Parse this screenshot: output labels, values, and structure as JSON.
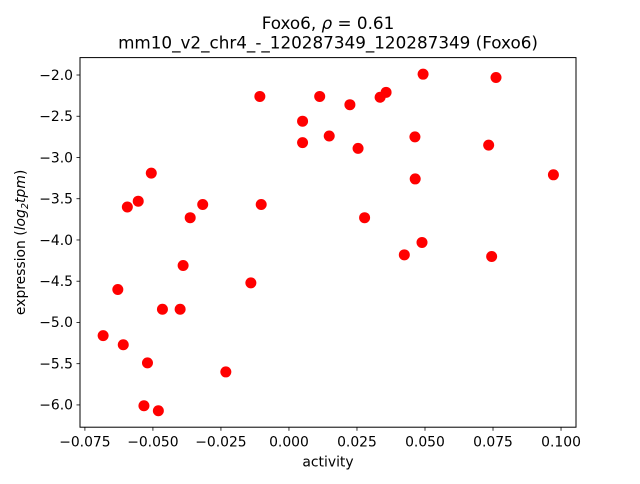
{
  "figure": {
    "title": {
      "prefix": "Foxo6, ",
      "rho": "ρ",
      "rest": " = 0.61"
    },
    "subtitle": "mm10_v2_chr4_-_120287349_120287349 (Foxo6)",
    "xlabel": "activity",
    "ylabel": {
      "prefix": "expression (",
      "log": "log",
      "sub": "2",
      "tpm": "tpm",
      "suffix": ")"
    }
  },
  "chart_data": {
    "type": "scatter",
    "title": "Foxo6, ρ = 0.61",
    "subtitle": "mm10_v2_chr4_-_120287349_120287349 (Foxo6)",
    "xlabel": "activity",
    "ylabel": "expression (log₂tpm)",
    "marker_color": "#ff0000",
    "marker_radius_px": 5.5,
    "grid": false,
    "legend": "none",
    "xlim": [
      -0.0768,
      0.1055
    ],
    "ylim": [
      -6.27,
      -1.789
    ],
    "x_ticks": [
      -0.075,
      -0.05,
      -0.025,
      0.0,
      0.025,
      0.05,
      0.075,
      0.1
    ],
    "y_ticks": [
      -2.0,
      -2.5,
      -3.0,
      -3.5,
      -4.0,
      -4.5,
      -5.0,
      -5.5,
      -6.0
    ],
    "points": [
      [
        -0.0683,
        -5.16
      ],
      [
        -0.0629,
        -4.6
      ],
      [
        -0.0609,
        -5.27
      ],
      [
        -0.0594,
        -3.6
      ],
      [
        -0.0554,
        -3.53
      ],
      [
        -0.0533,
        -6.01
      ],
      [
        -0.052,
        -5.49
      ],
      [
        -0.0506,
        -3.19
      ],
      [
        -0.048,
        -6.07
      ],
      [
        -0.0465,
        -4.84
      ],
      [
        -0.04,
        -4.84
      ],
      [
        -0.0389,
        -4.31
      ],
      [
        -0.0363,
        -3.73
      ],
      [
        -0.0317,
        -3.57
      ],
      [
        -0.0232,
        -5.6
      ],
      [
        -0.014,
        -4.52
      ],
      [
        -0.0107,
        -2.26
      ],
      [
        -0.0102,
        -3.57
      ],
      [
        0.005,
        -2.56
      ],
      [
        0.005,
        -2.82
      ],
      [
        0.0113,
        -2.26
      ],
      [
        0.0148,
        -2.74
      ],
      [
        0.0224,
        -2.36
      ],
      [
        0.0254,
        -2.89
      ],
      [
        0.0278,
        -3.73
      ],
      [
        0.0335,
        -2.27
      ],
      [
        0.0357,
        -2.21
      ],
      [
        0.0424,
        -4.18
      ],
      [
        0.0463,
        -2.75
      ],
      [
        0.0464,
        -3.26
      ],
      [
        0.0489,
        -4.03
      ],
      [
        0.0493,
        -1.99
      ],
      [
        0.0734,
        -2.85
      ],
      [
        0.0745,
        -4.2
      ],
      [
        0.0761,
        -2.03
      ],
      [
        0.0972,
        -3.21
      ]
    ]
  }
}
